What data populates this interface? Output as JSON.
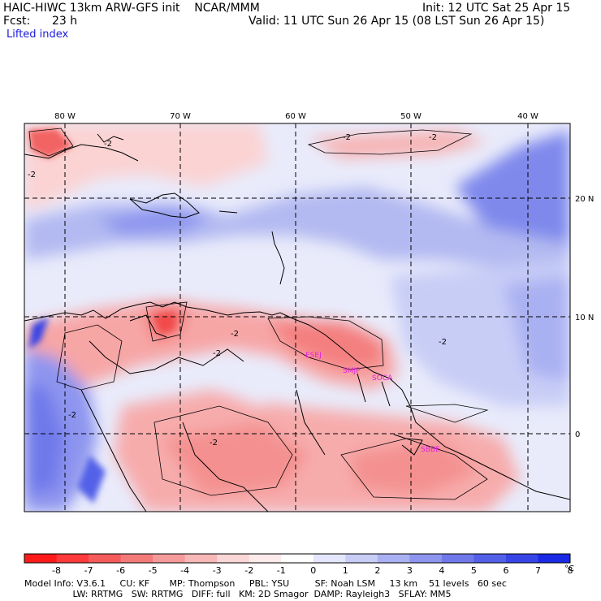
{
  "header": {
    "model_title": "HAIC-HIWC 13km ARW-GFS init    NCAR/MMM",
    "fcst_label": "Fcst:",
    "fcst_hours": "23 h",
    "field_name": "Lifted index",
    "init_text": "Init: 12 UTC Sat 25 Apr 15",
    "valid_text": "Valid: 11 UTC Sun 26 Apr 15 (08 LST Sun 26 Apr 15)"
  },
  "axes": {
    "lon_labels": [
      "80 W",
      "70 W",
      "60 W",
      "50 W",
      "40 W"
    ],
    "lat_labels": [
      "20 N",
      "10 N",
      "0"
    ]
  },
  "stations": [
    "ESEJ",
    "SMJP",
    "SOCA",
    "SBBE"
  ],
  "contour_labels": [
    "-2",
    "-2",
    "-2",
    "-2",
    "-2",
    "-2",
    "-2",
    "-2",
    "-2"
  ],
  "colorbar": {
    "values": [
      "-8",
      "-7",
      "-6",
      "-5",
      "-4",
      "-3",
      "-2",
      "-1",
      "0",
      "1",
      "2",
      "3",
      "4",
      "5",
      "6",
      "7",
      "8"
    ],
    "unit": "°C",
    "colors": [
      "#ff1a1a",
      "#ff3a3a",
      "#f55b5b",
      "#f47a7a",
      "#f59a9a",
      "#f8b8b8",
      "#fad6d6",
      "#fdeaea",
      "#ffffff",
      "#e4e6fb",
      "#c8cdf6",
      "#aab1f2",
      "#8d95ef",
      "#6f79ea",
      "#5360e8",
      "#3745e6",
      "#1a2ae4"
    ]
  },
  "footer": {
    "line1": "Model Info: V3.6.1     CU: KF       MP: Thompson     PBL: YSU         SF: Noah LSM     13 km    51 levels   60 sec",
    "line2": "                 LW: RRTMG   SW: RRTMG   DIFF: full   KM: 2D Smagor  DAMP: Rayleigh3   SFLAY: MM5"
  }
}
